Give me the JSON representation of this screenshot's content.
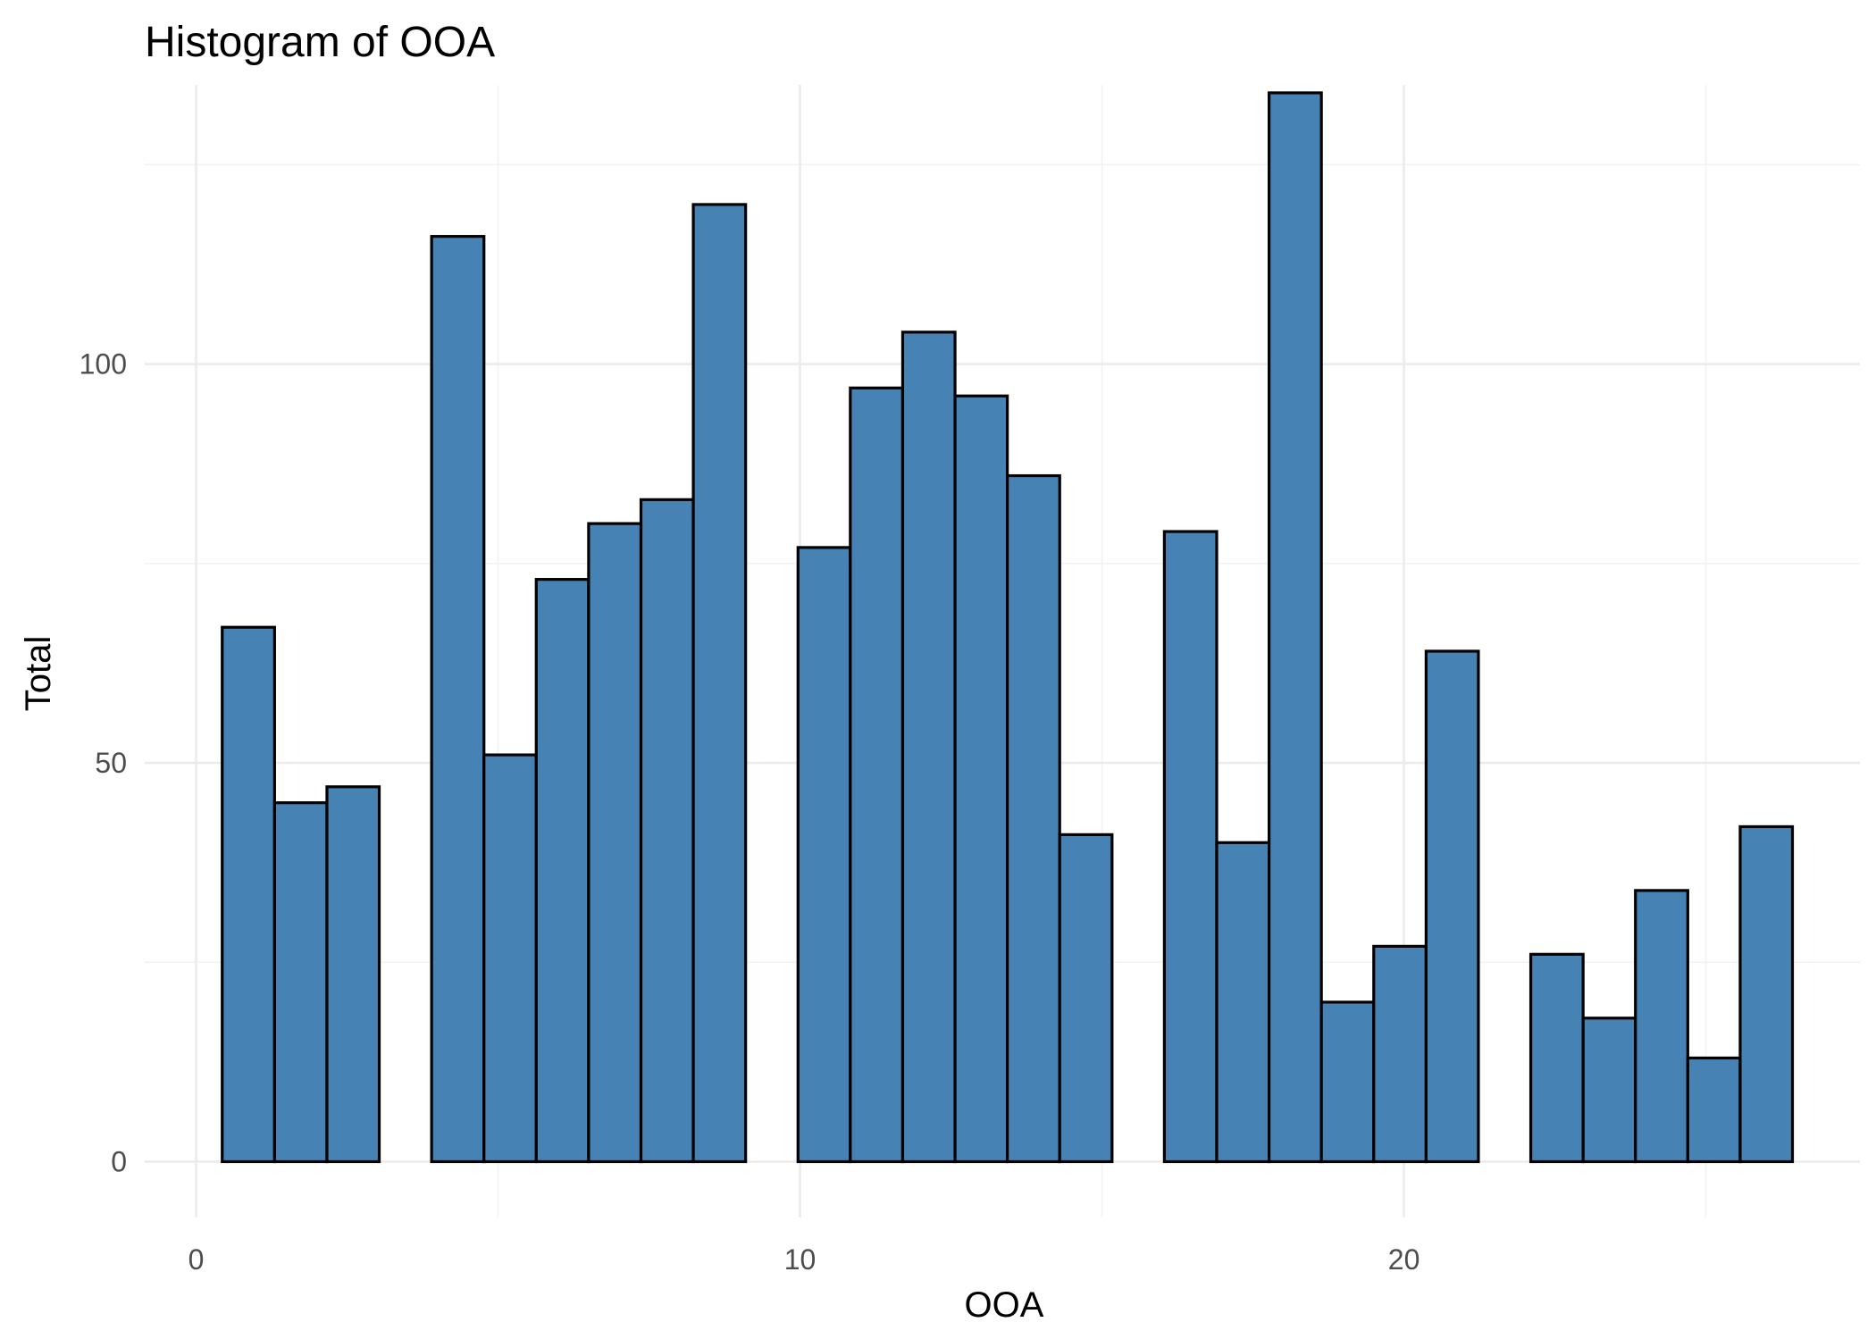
{
  "chart_data": {
    "type": "bar",
    "title": "Histogram of  OOA",
    "xlabel": "OOA",
    "ylabel": "Total",
    "fill_color": "#4682b4",
    "outline_color": "#000000",
    "grid": true,
    "xlim": [
      -0.85,
      27.55
    ],
    "ylim": [
      -7,
      135
    ],
    "x_ticks": [
      0,
      10,
      20
    ],
    "y_ticks": [
      0,
      50,
      100
    ],
    "bin_width": 0.8667,
    "bins": [
      {
        "x0": 0.433,
        "x1": 1.3,
        "value": 67
      },
      {
        "x0": 1.3,
        "x1": 2.167,
        "value": 45
      },
      {
        "x0": 2.167,
        "x1": 3.033,
        "value": 47
      },
      {
        "x0": 3.033,
        "x1": 3.9,
        "value": 0
      },
      {
        "x0": 3.9,
        "x1": 4.767,
        "value": 116
      },
      {
        "x0": 4.767,
        "x1": 5.633,
        "value": 51
      },
      {
        "x0": 5.633,
        "x1": 6.5,
        "value": 73
      },
      {
        "x0": 6.5,
        "x1": 7.367,
        "value": 80
      },
      {
        "x0": 7.367,
        "x1": 8.233,
        "value": 83
      },
      {
        "x0": 8.233,
        "x1": 9.1,
        "value": 120
      },
      {
        "x0": 9.1,
        "x1": 9.967,
        "value": 0
      },
      {
        "x0": 9.967,
        "x1": 10.833,
        "value": 77
      },
      {
        "x0": 10.833,
        "x1": 11.7,
        "value": 97
      },
      {
        "x0": 11.7,
        "x1": 12.567,
        "value": 104
      },
      {
        "x0": 12.567,
        "x1": 13.433,
        "value": 96
      },
      {
        "x0": 13.433,
        "x1": 14.3,
        "value": 86
      },
      {
        "x0": 14.3,
        "x1": 15.167,
        "value": 41
      },
      {
        "x0": 15.167,
        "x1": 16.033,
        "value": 0
      },
      {
        "x0": 16.033,
        "x1": 16.9,
        "value": 79
      },
      {
        "x0": 16.9,
        "x1": 17.767,
        "value": 40
      },
      {
        "x0": 17.767,
        "x1": 18.633,
        "value": 134
      },
      {
        "x0": 18.633,
        "x1": 19.5,
        "value": 20
      },
      {
        "x0": 19.5,
        "x1": 20.367,
        "value": 27
      },
      {
        "x0": 20.367,
        "x1": 21.233,
        "value": 64
      },
      {
        "x0": 21.233,
        "x1": 22.1,
        "value": 0
      },
      {
        "x0": 22.1,
        "x1": 22.967,
        "value": 26
      },
      {
        "x0": 22.967,
        "x1": 23.833,
        "value": 18
      },
      {
        "x0": 23.833,
        "x1": 24.7,
        "value": 34
      },
      {
        "x0": 24.7,
        "x1": 25.567,
        "value": 13
      },
      {
        "x0": 25.567,
        "x1": 26.433,
        "value": 42
      }
    ]
  }
}
